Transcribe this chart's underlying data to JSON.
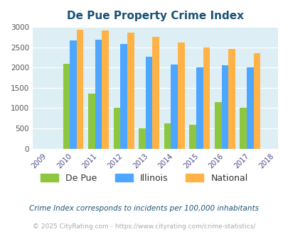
{
  "title": "De Pue Property Crime Index",
  "all_years": [
    2009,
    2010,
    2011,
    2012,
    2013,
    2014,
    2015,
    2016,
    2017,
    2018
  ],
  "bar_years": [
    2010,
    2011,
    2012,
    2013,
    2014,
    2015,
    2016,
    2017
  ],
  "depue": [
    2100,
    1350,
    1000,
    500,
    630,
    590,
    1150,
    1000
  ],
  "illinois": [
    2670,
    2680,
    2580,
    2270,
    2080,
    2000,
    2050,
    2010
  ],
  "national": [
    2930,
    2910,
    2860,
    2750,
    2610,
    2500,
    2460,
    2360
  ],
  "depue_color": "#8dc63f",
  "illinois_color": "#4da6ff",
  "national_color": "#ffb347",
  "bg_color": "#ddeef4",
  "title_color": "#1a5276",
  "tick_color": "#4a4a8a",
  "ylabel_max": 3000,
  "ylabel_step": 500,
  "footnote1": "Crime Index corresponds to incidents per 100,000 inhabitants",
  "footnote2": "© 2025 CityRating.com - https://www.cityrating.com/crime-statistics/",
  "bar_width": 0.27
}
